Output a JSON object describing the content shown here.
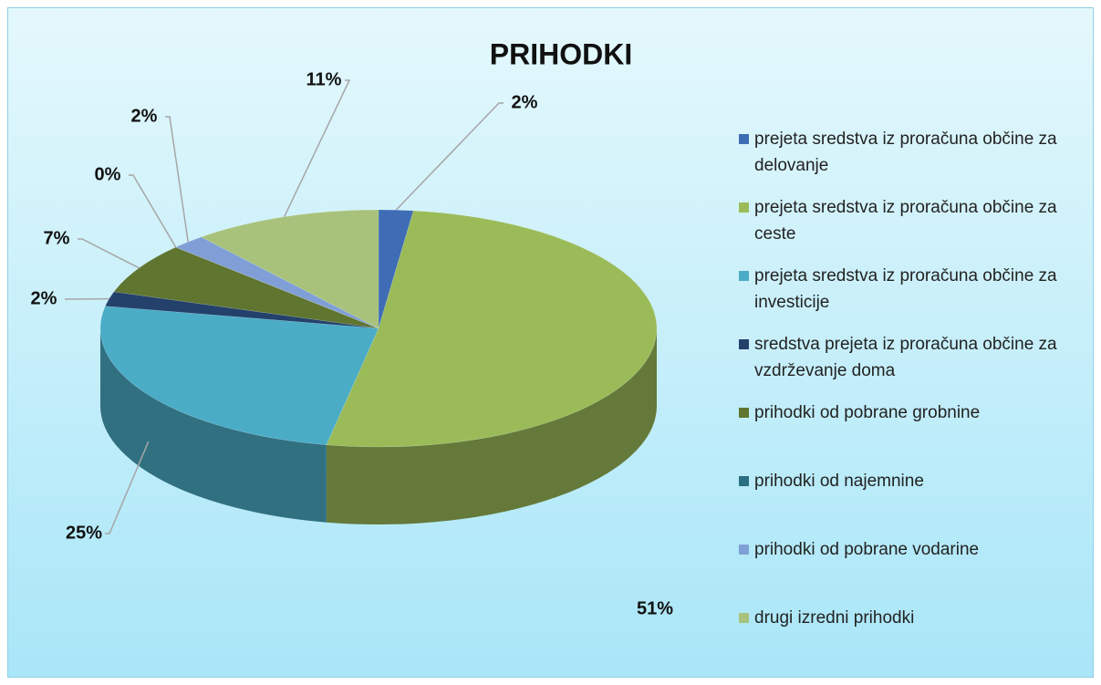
{
  "chart_data": {
    "type": "pie",
    "title": "PRIHODKI",
    "categories": [
      "prejeta sredstva iz proračuna občine za delovanje",
      "prejeta sredstva iz proračuna občine za ceste",
      "prejeta sredstva iz proračuna občine za investicije",
      "sredstva prejeta iz proračuna občine za vzdrževanje doma",
      "prihodki od pobrane grobnine",
      "prihodki od najemnine",
      "prihodki od pobrane vodarine",
      "drugi izredni prihodki"
    ],
    "values": [
      2,
      51,
      25,
      2,
      7,
      0,
      2,
      11
    ],
    "value_labels": [
      "2%",
      "51%",
      "25%",
      "2%",
      "7%",
      "0%",
      "2%",
      "11%"
    ],
    "colors": [
      "#3e6db5",
      "#9bbb59",
      "#4bacc6",
      "#23416b",
      "#5f7530",
      "#2a6f82",
      "#7f9fd6",
      "#a8c27c"
    ],
    "legend": "right"
  }
}
